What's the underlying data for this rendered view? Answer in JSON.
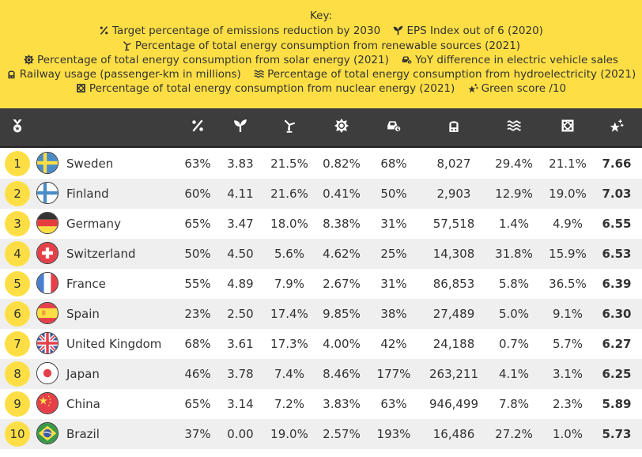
{
  "key": {
    "title": "Key:",
    "items": [
      {
        "icon": "percent-icon",
        "label": "Target percentage of emissions reduction by 2030"
      },
      {
        "icon": "sprout-icon",
        "label": "EPS Index out of 6 (2020)"
      },
      {
        "icon": "wind-turbine-icon",
        "label": "Percentage of total energy consumption from renewable sources (2021)"
      },
      {
        "icon": "sun-icon",
        "label": "Percentage of total energy consumption from solar energy (2021)"
      },
      {
        "icon": "electric-car-icon",
        "label": "YoY difference in electric vehicle sales"
      },
      {
        "icon": "train-icon",
        "label": "Railway usage (passenger-km in millions)"
      },
      {
        "icon": "water-waves-icon",
        "label": "Percentage of total energy consumption from hydroelectricity (2021)"
      },
      {
        "icon": "atom-icon",
        "label": "Percentage of total energy consumption from nuclear energy (2021)"
      },
      {
        "icon": "sparkle-star-icon",
        "label": "Green score /10"
      }
    ]
  },
  "header": {
    "rank_icon": "medal-icon",
    "columns": [
      "percent-icon",
      "sprout-icon",
      "wind-turbine-icon",
      "sun-icon",
      "electric-car-icon",
      "train-icon",
      "water-waves-icon",
      "atom-icon",
      "sparkle-star-icon"
    ]
  },
  "colors": {
    "key_bg": "#fddf45",
    "header_bg": "#3d3d3d",
    "badge": "#fddf45",
    "alt_row": "#efefef"
  },
  "rows": [
    {
      "rank": "1",
      "country": "Sweden",
      "flag": "sweden-flag",
      "values": [
        "63%",
        "3.83",
        "21.5%",
        "0.82%",
        "68%",
        "8,027",
        "29.4%",
        "21.1%"
      ],
      "score": "7.66"
    },
    {
      "rank": "2",
      "country": "Finland",
      "flag": "finland-flag",
      "values": [
        "60%",
        "4.11",
        "21.6%",
        "0.41%",
        "50%",
        "2,903",
        "12.9%",
        "19.0%"
      ],
      "score": "7.03"
    },
    {
      "rank": "3",
      "country": "Germany",
      "flag": "germany-flag",
      "values": [
        "65%",
        "3.47",
        "18.0%",
        "8.38%",
        "31%",
        "57,518",
        "1.4%",
        "4.9%"
      ],
      "score": "6.55"
    },
    {
      "rank": "4",
      "country": "Switzerland",
      "flag": "switzerland-flag",
      "values": [
        "50%",
        "4.50",
        "5.6%",
        "4.62%",
        "25%",
        "14,308",
        "31.8%",
        "15.9%"
      ],
      "score": "6.53"
    },
    {
      "rank": "5",
      "country": "France",
      "flag": "france-flag",
      "values": [
        "55%",
        "4.89",
        "7.9%",
        "2.67%",
        "31%",
        "86,853",
        "5.8%",
        "36.5%"
      ],
      "score": "6.39"
    },
    {
      "rank": "6",
      "country": "Spain",
      "flag": "spain-flag",
      "values": [
        "23%",
        "2.50",
        "17.4%",
        "9.85%",
        "38%",
        "27,489",
        "5.0%",
        "9.1%"
      ],
      "score": "6.30"
    },
    {
      "rank": "7",
      "country": "United Kingdom",
      "flag": "uk-flag",
      "values": [
        "68%",
        "3.61",
        "17.3%",
        "4.00%",
        "42%",
        "24,188",
        "0.7%",
        "5.7%"
      ],
      "score": "6.27"
    },
    {
      "rank": "8",
      "country": "Japan",
      "flag": "japan-flag",
      "values": [
        "46%",
        "3.78",
        "7.4%",
        "8.46%",
        "177%",
        "263,211",
        "4.1%",
        "3.1%"
      ],
      "score": "6.25"
    },
    {
      "rank": "9",
      "country": "China",
      "flag": "china-flag",
      "values": [
        "65%",
        "3.14",
        "7.2%",
        "3.83%",
        "63%",
        "946,499",
        "7.8%",
        "2.3%"
      ],
      "score": "5.89"
    },
    {
      "rank": "10",
      "country": "Brazil",
      "flag": "brazil-flag",
      "values": [
        "37%",
        "0.00",
        "19.0%",
        "2.57%",
        "193%",
        "16,486",
        "27.2%",
        "1.0%"
      ],
      "score": "5.73"
    }
  ]
}
